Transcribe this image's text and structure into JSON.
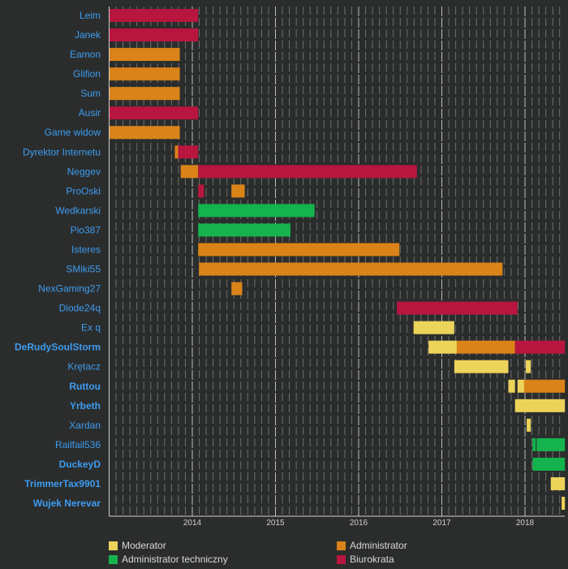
{
  "chart_data": {
    "type": "timeline",
    "title": "",
    "xlabel": "",
    "ylabel": "",
    "xlim": [
      2013.0,
      2018.48
    ],
    "x_ticks": [
      "2014",
      "2015",
      "2016",
      "2017",
      "2018"
    ],
    "grid": "monthly dashed vertical lines",
    "legend_placement": "bottom",
    "roles": [
      {
        "key": "mod",
        "name": "Moderator",
        "color": "#ecd35a"
      },
      {
        "key": "admin",
        "name": "Administrator",
        "color": "#d98318"
      },
      {
        "key": "tech",
        "name": "Administrator techniczny",
        "color": "#15b34d"
      },
      {
        "key": "bureau",
        "name": "Biurokrata",
        "color": "#b8163f"
      }
    ],
    "rows": [
      {
        "name": "Leim",
        "bold": false,
        "bars": [
          {
            "role": "bureau",
            "start": 2013.0,
            "end": 2014.07
          }
        ]
      },
      {
        "name": "Janek",
        "bold": false,
        "bars": [
          {
            "role": "bureau",
            "start": 2013.0,
            "end": 2014.07
          }
        ]
      },
      {
        "name": "Eamon",
        "bold": false,
        "bars": [
          {
            "role": "admin",
            "start": 2013.0,
            "end": 2013.85
          }
        ]
      },
      {
        "name": "Glifion",
        "bold": false,
        "bars": [
          {
            "role": "admin",
            "start": 2013.0,
            "end": 2013.85
          }
        ]
      },
      {
        "name": "Sum",
        "bold": false,
        "bars": [
          {
            "role": "admin",
            "start": 2013.0,
            "end": 2013.85
          }
        ]
      },
      {
        "name": "Ausir",
        "bold": false,
        "bars": [
          {
            "role": "bureau",
            "start": 2013.0,
            "end": 2014.07
          }
        ]
      },
      {
        "name": "Game widow",
        "bold": false,
        "bars": [
          {
            "role": "admin",
            "start": 2013.0,
            "end": 2013.85
          }
        ]
      },
      {
        "name": "Dyrektor Internetu",
        "bold": false,
        "bars": [
          {
            "role": "admin",
            "start": 2013.79,
            "end": 2013.83
          },
          {
            "role": "bureau",
            "start": 2013.83,
            "end": 2014.07
          }
        ]
      },
      {
        "name": "Neggev",
        "bold": false,
        "bars": [
          {
            "role": "admin",
            "start": 2013.86,
            "end": 2014.07
          },
          {
            "role": "bureau",
            "start": 2014.07,
            "end": 2016.7
          }
        ]
      },
      {
        "name": "ProOski",
        "bold": false,
        "bars": [
          {
            "role": "bureau",
            "start": 2014.07,
            "end": 2014.14
          },
          {
            "role": "admin",
            "start": 2014.47,
            "end": 2014.63
          }
        ]
      },
      {
        "name": "Wedkarski",
        "bold": false,
        "bars": [
          {
            "role": "tech",
            "start": 2014.07,
            "end": 2015.47
          }
        ]
      },
      {
        "name": "Pio387",
        "bold": false,
        "bars": [
          {
            "role": "tech",
            "start": 2014.07,
            "end": 2015.18
          }
        ]
      },
      {
        "name": "Isteres",
        "bold": false,
        "bars": [
          {
            "role": "admin",
            "start": 2014.07,
            "end": 2016.49
          }
        ]
      },
      {
        "name": "SMiki55",
        "bold": false,
        "bars": [
          {
            "role": "admin",
            "start": 2014.08,
            "end": 2017.73
          }
        ]
      },
      {
        "name": "NexGaming27",
        "bold": false,
        "bars": [
          {
            "role": "admin",
            "start": 2014.47,
            "end": 2014.6
          }
        ]
      },
      {
        "name": "Diode24q",
        "bold": false,
        "bars": [
          {
            "role": "bureau",
            "start": 2016.46,
            "end": 2017.91
          }
        ]
      },
      {
        "name": "Ex q",
        "bold": false,
        "bars": [
          {
            "role": "mod",
            "start": 2016.66,
            "end": 2017.15
          }
        ]
      },
      {
        "name": "DeRudySoulStorm",
        "bold": true,
        "bars": [
          {
            "role": "mod",
            "start": 2016.84,
            "end": 2017.18
          },
          {
            "role": "admin",
            "start": 2017.18,
            "end": 2017.88
          },
          {
            "role": "bureau",
            "start": 2017.88,
            "end": 2018.48
          }
        ]
      },
      {
        "name": "Krętacz",
        "bold": false,
        "bars": [
          {
            "role": "mod",
            "start": 2017.15,
            "end": 2017.8
          },
          {
            "role": "mod",
            "start": 2018.01,
            "end": 2018.07
          }
        ]
      },
      {
        "name": "Ruttou",
        "bold": true,
        "bars": [
          {
            "role": "mod",
            "start": 2017.8,
            "end": 2017.88
          },
          {
            "role": "mod",
            "start": 2017.91,
            "end": 2017.99
          },
          {
            "role": "admin",
            "start": 2017.99,
            "end": 2018.48
          }
        ]
      },
      {
        "name": "Yrbeth",
        "bold": true,
        "bars": [
          {
            "role": "mod",
            "start": 2017.88,
            "end": 2018.48
          }
        ]
      },
      {
        "name": "Xardan",
        "bold": false,
        "bars": [
          {
            "role": "mod",
            "start": 2018.02,
            "end": 2018.07
          }
        ]
      },
      {
        "name": "Railfail536",
        "bold": false,
        "bars": [
          {
            "role": "tech",
            "start": 2018.09,
            "end": 2018.13
          },
          {
            "role": "tech",
            "start": 2018.14,
            "end": 2018.48
          }
        ]
      },
      {
        "name": "DuckeyD",
        "bold": true,
        "bars": [
          {
            "role": "tech",
            "start": 2018.09,
            "end": 2018.48
          }
        ]
      },
      {
        "name": "TrimmerTax9901",
        "bold": true,
        "bars": [
          {
            "role": "mod",
            "start": 2018.31,
            "end": 2018.48
          }
        ]
      },
      {
        "name": "Wujek Nerevar",
        "bold": true,
        "bars": [
          {
            "role": "mod",
            "start": 2018.44,
            "end": 2018.48
          }
        ]
      }
    ]
  }
}
